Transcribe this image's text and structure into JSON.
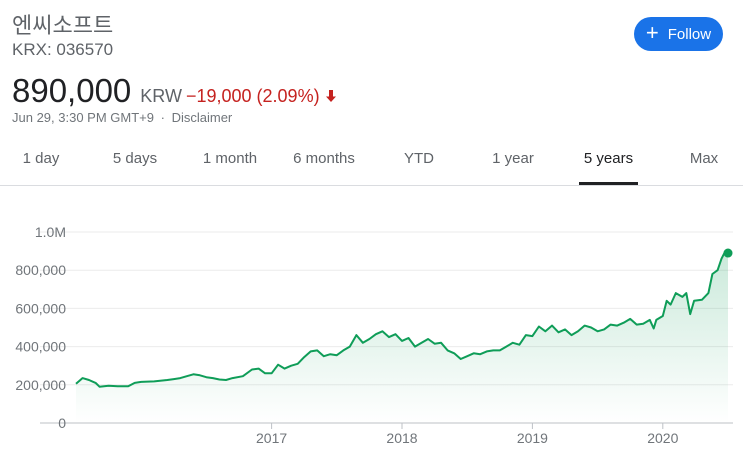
{
  "header": {
    "company_name": "엔씨소프트",
    "ticker": "KRX: 036570"
  },
  "follow_button": {
    "label": "Follow",
    "icon": "plus-icon",
    "color": "#1a73e8"
  },
  "quote": {
    "price": "890,000",
    "currency": "KRW",
    "change": "−19,000 (2.09%)",
    "direction_icon": "down-arrow-icon",
    "change_color": "#c5221f"
  },
  "meta": {
    "timestamp": "Jun 29, 3:30 PM GMT+9",
    "separator": "·",
    "disclaimer": "Disclaimer"
  },
  "tabs": [
    {
      "label": "1 day"
    },
    {
      "label": "5 days"
    },
    {
      "label": "1 month"
    },
    {
      "label": "6 months"
    },
    {
      "label": "YTD"
    },
    {
      "label": "1 year"
    },
    {
      "label": "5 years",
      "active": true
    },
    {
      "label": "Max"
    }
  ],
  "chart_data": {
    "type": "area",
    "ylim": [
      0,
      1000000
    ],
    "yticks": [
      {
        "value": 1000000,
        "label": "1.0M"
      },
      {
        "value": 800000,
        "label": "800,000"
      },
      {
        "value": 600000,
        "label": "600,000"
      },
      {
        "value": 400000,
        "label": "400,000"
      },
      {
        "value": 200000,
        "label": "200,000"
      },
      {
        "value": 0,
        "label": "0"
      }
    ],
    "xlim": [
      2015.5,
      2020.5
    ],
    "xticks": [
      {
        "value": 2017,
        "label": "2017"
      },
      {
        "value": 2018,
        "label": "2018"
      },
      {
        "value": 2019,
        "label": "2019"
      },
      {
        "value": 2020,
        "label": "2020"
      }
    ],
    "grid": true,
    "line_color": "#0f9d58",
    "series": [
      {
        "values": [
          [
            2015.5,
            205000
          ],
          [
            2015.55,
            235000
          ],
          [
            2015.6,
            225000
          ],
          [
            2015.65,
            210000
          ],
          [
            2015.68,
            190000
          ],
          [
            2015.75,
            195000
          ],
          [
            2015.82,
            192000
          ],
          [
            2015.9,
            192000
          ],
          [
            2015.95,
            210000
          ],
          [
            2016.0,
            215000
          ],
          [
            2016.1,
            218000
          ],
          [
            2016.2,
            225000
          ],
          [
            2016.25,
            230000
          ],
          [
            2016.3,
            235000
          ],
          [
            2016.35,
            245000
          ],
          [
            2016.4,
            255000
          ],
          [
            2016.45,
            250000
          ],
          [
            2016.5,
            240000
          ],
          [
            2016.55,
            235000
          ],
          [
            2016.6,
            228000
          ],
          [
            2016.65,
            225000
          ],
          [
            2016.7,
            235000
          ],
          [
            2016.78,
            245000
          ],
          [
            2016.85,
            280000
          ],
          [
            2016.9,
            285000
          ],
          [
            2016.95,
            260000
          ],
          [
            2017.0,
            260000
          ],
          [
            2017.05,
            305000
          ],
          [
            2017.1,
            285000
          ],
          [
            2017.15,
            300000
          ],
          [
            2017.2,
            310000
          ],
          [
            2017.25,
            345000
          ],
          [
            2017.3,
            375000
          ],
          [
            2017.35,
            380000
          ],
          [
            2017.4,
            350000
          ],
          [
            2017.45,
            360000
          ],
          [
            2017.5,
            355000
          ],
          [
            2017.55,
            380000
          ],
          [
            2017.6,
            400000
          ],
          [
            2017.65,
            460000
          ],
          [
            2017.7,
            420000
          ],
          [
            2017.75,
            440000
          ],
          [
            2017.8,
            465000
          ],
          [
            2017.85,
            480000
          ],
          [
            2017.9,
            450000
          ],
          [
            2017.95,
            465000
          ],
          [
            2018.0,
            430000
          ],
          [
            2018.05,
            445000
          ],
          [
            2018.1,
            400000
          ],
          [
            2018.15,
            420000
          ],
          [
            2018.2,
            440000
          ],
          [
            2018.25,
            415000
          ],
          [
            2018.3,
            420000
          ],
          [
            2018.35,
            380000
          ],
          [
            2018.4,
            365000
          ],
          [
            2018.45,
            335000
          ],
          [
            2018.5,
            350000
          ],
          [
            2018.55,
            365000
          ],
          [
            2018.6,
            360000
          ],
          [
            2018.65,
            375000
          ],
          [
            2018.7,
            380000
          ],
          [
            2018.75,
            380000
          ],
          [
            2018.8,
            400000
          ],
          [
            2018.85,
            420000
          ],
          [
            2018.9,
            410000
          ],
          [
            2018.95,
            460000
          ],
          [
            2019.0,
            455000
          ],
          [
            2019.05,
            505000
          ],
          [
            2019.1,
            480000
          ],
          [
            2019.15,
            510000
          ],
          [
            2019.2,
            475000
          ],
          [
            2019.25,
            490000
          ],
          [
            2019.3,
            460000
          ],
          [
            2019.35,
            480000
          ],
          [
            2019.4,
            510000
          ],
          [
            2019.45,
            500000
          ],
          [
            2019.5,
            480000
          ],
          [
            2019.55,
            490000
          ],
          [
            2019.6,
            515000
          ],
          [
            2019.65,
            510000
          ],
          [
            2019.7,
            525000
          ],
          [
            2019.75,
            545000
          ],
          [
            2019.8,
            515000
          ],
          [
            2019.85,
            520000
          ],
          [
            2019.9,
            540000
          ],
          [
            2019.93,
            495000
          ],
          [
            2019.95,
            540000
          ],
          [
            2020.0,
            560000
          ],
          [
            2020.03,
            640000
          ],
          [
            2020.06,
            620000
          ],
          [
            2020.1,
            680000
          ],
          [
            2020.15,
            660000
          ],
          [
            2020.18,
            680000
          ],
          [
            2020.21,
            570000
          ],
          [
            2020.24,
            640000
          ],
          [
            2020.3,
            645000
          ],
          [
            2020.35,
            680000
          ],
          [
            2020.38,
            780000
          ],
          [
            2020.42,
            800000
          ],
          [
            2020.45,
            860000
          ],
          [
            2020.48,
            900000
          ],
          [
            2020.5,
            890000
          ]
        ]
      }
    ]
  }
}
